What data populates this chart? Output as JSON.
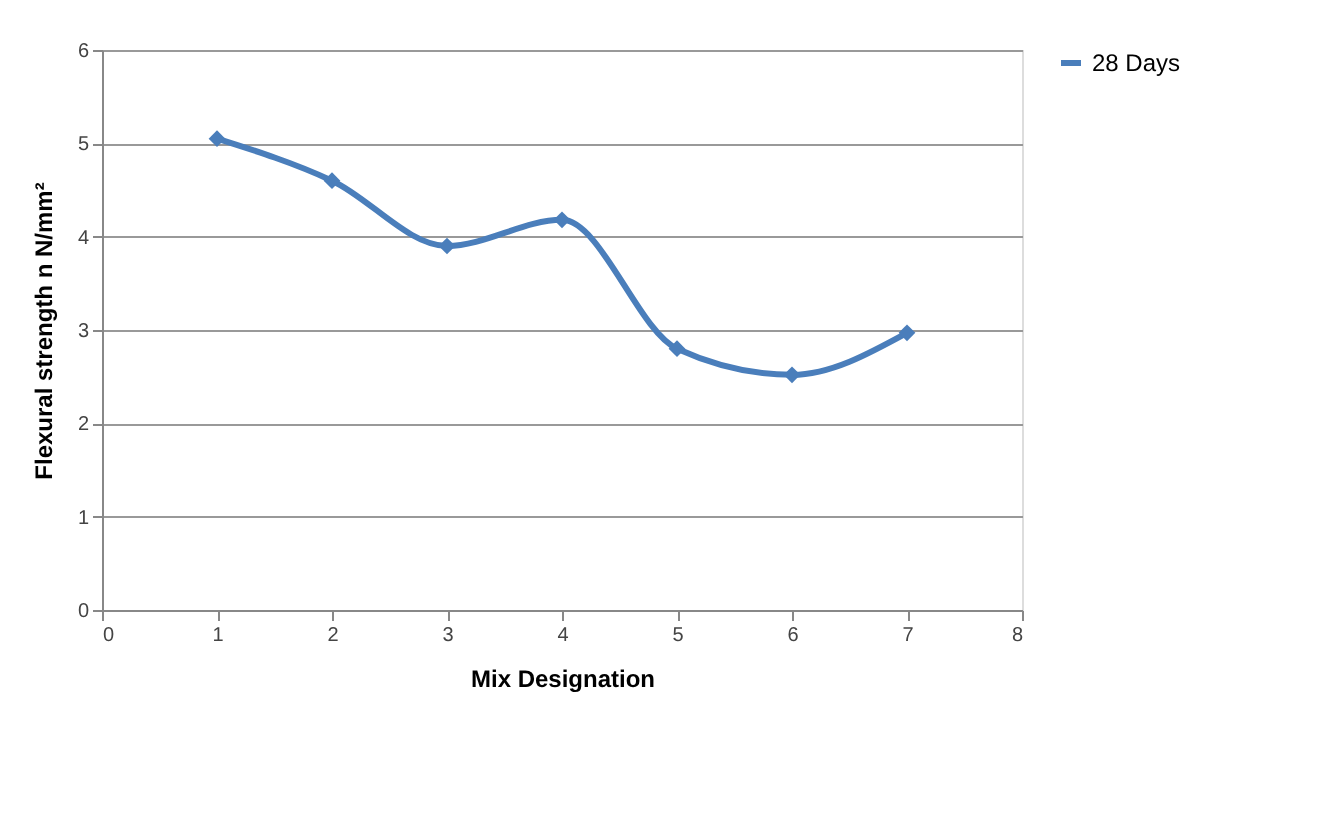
{
  "chart_data": {
    "type": "line",
    "xlabel": "Mix Designation",
    "ylabel": "Flexural strength n N/mm²",
    "x": [
      1,
      2,
      3,
      4,
      5,
      6,
      7
    ],
    "series": [
      {
        "name": "28 Days",
        "color": "#4a7ebb",
        "values": [
          5.05,
          4.6,
          3.9,
          4.18,
          2.8,
          2.52,
          2.97
        ]
      }
    ],
    "xlim": [
      0,
      8
    ],
    "xticks": [
      0,
      1,
      2,
      3,
      4,
      5,
      6,
      7,
      8
    ],
    "ylim": [
      0,
      6
    ],
    "yticks": [
      0,
      1,
      2,
      3,
      4,
      5,
      6
    ],
    "grid": "y",
    "legend": "right",
    "marker": "diamond",
    "line_style": "solid"
  }
}
